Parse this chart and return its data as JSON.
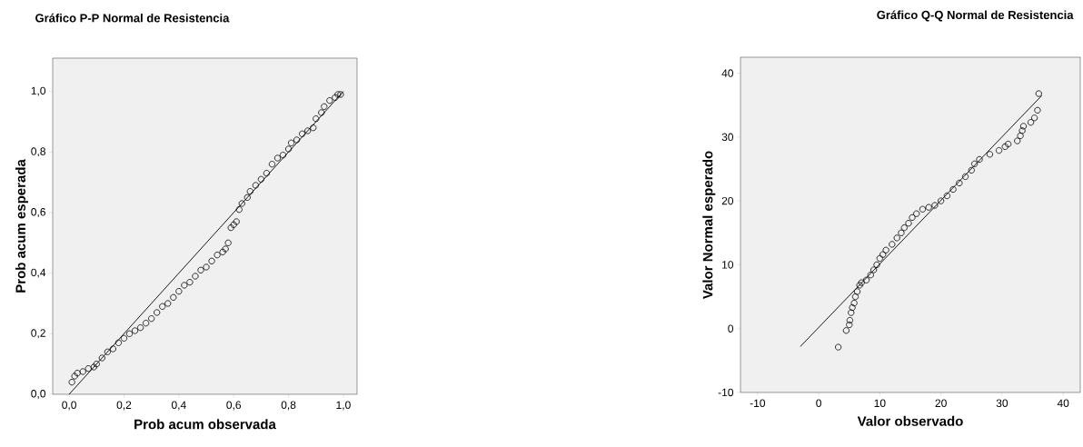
{
  "chart_data": [
    {
      "type": "scatter",
      "title": "Gráfico P-P Normal de Resistencia",
      "xlabel": "Prob acum observada",
      "ylabel": "Prob acum esperada",
      "xlim": [
        -0.06,
        1.05
      ],
      "ylim": [
        0,
        1.11
      ],
      "xticks": [
        {
          "value": 0,
          "label": "0,0"
        },
        {
          "value": 0.2,
          "label": "0,2"
        },
        {
          "value": 0.4,
          "label": "0,4"
        },
        {
          "value": 0.6,
          "label": "0,6"
        },
        {
          "value": 0.8,
          "label": "0,8"
        },
        {
          "value": 1,
          "label": "1,0"
        }
      ],
      "yticks": [
        {
          "value": 0,
          "label": "0,0"
        },
        {
          "value": 0.2,
          "label": "0,2"
        },
        {
          "value": 0.4,
          "label": "0,4"
        },
        {
          "value": 0.6,
          "label": "0,6"
        },
        {
          "value": 0.8,
          "label": "0,8"
        },
        {
          "value": 1,
          "label": "1,0"
        }
      ],
      "series": [
        {
          "marker": "circle",
          "color": "#000000",
          "x": [
            0.01,
            0.02,
            0.03,
            0.05,
            0.07,
            0.09,
            0.1,
            0.12,
            0.14,
            0.16,
            0.18,
            0.2,
            0.22,
            0.24,
            0.26,
            0.28,
            0.3,
            0.32,
            0.34,
            0.36,
            0.38,
            0.4,
            0.42,
            0.44,
            0.46,
            0.48,
            0.5,
            0.52,
            0.54,
            0.56,
            0.57,
            0.58,
            0.59,
            0.6,
            0.61,
            0.62,
            0.63,
            0.65,
            0.66,
            0.68,
            0.7,
            0.72,
            0.74,
            0.76,
            0.78,
            0.8,
            0.81,
            0.83,
            0.85,
            0.87,
            0.89,
            0.9,
            0.92,
            0.93,
            0.95,
            0.97,
            0.98,
            0.99
          ],
          "values": [
            0.04,
            0.06,
            0.07,
            0.075,
            0.085,
            0.09,
            0.1,
            0.12,
            0.14,
            0.15,
            0.17,
            0.185,
            0.2,
            0.21,
            0.22,
            0.235,
            0.25,
            0.27,
            0.29,
            0.3,
            0.32,
            0.34,
            0.36,
            0.37,
            0.39,
            0.41,
            0.42,
            0.44,
            0.46,
            0.47,
            0.48,
            0.5,
            0.55,
            0.56,
            0.57,
            0.61,
            0.63,
            0.65,
            0.67,
            0.69,
            0.71,
            0.73,
            0.76,
            0.78,
            0.79,
            0.81,
            0.83,
            0.84,
            0.86,
            0.87,
            0.88,
            0.91,
            0.93,
            0.95,
            0.97,
            0.98,
            0.99,
            0.99
          ]
        },
        {
          "type": "line",
          "marker": "none",
          "color": "#000000",
          "x": [
            0,
            1
          ],
          "values": [
            0,
            1
          ]
        }
      ]
    },
    {
      "type": "scatter",
      "title": "Gráfico Q-Q Normal de Resistencia",
      "xlabel": "Valor observado",
      "ylabel": "Valor Normal esperado",
      "xlim": [
        -12.8,
        42.8
      ],
      "ylim": [
        -10,
        42.5
      ],
      "xticks": [
        -10,
        0,
        10,
        20,
        30,
        40
      ],
      "yticks": [
        -10,
        0,
        10,
        20,
        30,
        40
      ],
      "series": [
        {
          "marker": "circle",
          "color": "#000000",
          "x": [
            3.2,
            4.5,
            5.0,
            5.1,
            5.3,
            5.5,
            5.8,
            6,
            6.3,
            6.7,
            7,
            7.8,
            8.5,
            9,
            9.5,
            10,
            10.5,
            11,
            12,
            12.8,
            13.5,
            14,
            14.7,
            15.3,
            16,
            17,
            18,
            19,
            20,
            21,
            22,
            23,
            24,
            25,
            25.5,
            26.3,
            28,
            29.5,
            30.5,
            31,
            32.5,
            33,
            33.3,
            33.5,
            34.7,
            35.3,
            35.8,
            36
          ],
          "values": [
            -2.9,
            -0.3,
            0.6,
            1.3,
            2.5,
            3.3,
            4,
            5,
            5.8,
            6.8,
            7.2,
            7.6,
            8.4,
            9.2,
            10,
            11,
            11.6,
            12.3,
            13.2,
            14.2,
            15,
            15.8,
            16.5,
            17.4,
            18,
            18.7,
            19,
            19.3,
            20,
            20.8,
            21.8,
            22.8,
            23.8,
            24.8,
            25.8,
            26.5,
            27.3,
            27.9,
            28.5,
            28.9,
            29.4,
            30.2,
            31,
            31.7,
            32.3,
            33,
            34.2,
            36.8
          ]
        },
        {
          "type": "line",
          "marker": "none",
          "color": "#000000",
          "x": [
            -3,
            36.5
          ],
          "values": [
            -2.8,
            36.5
          ]
        }
      ]
    }
  ]
}
